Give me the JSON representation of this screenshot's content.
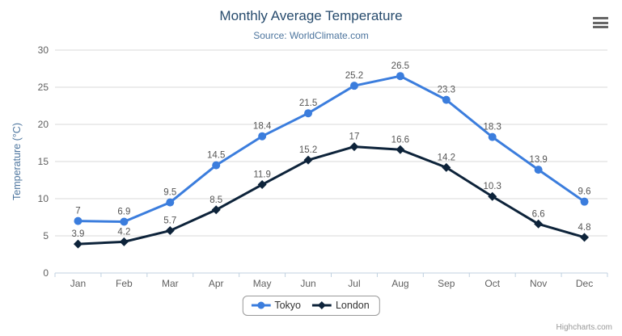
{
  "header": {
    "title": "Monthly Average Temperature",
    "subtitle": "Source: WorldClimate.com"
  },
  "credits": "Highcharts.com",
  "menu_icon": "hamburger-menu",
  "chart_data": {
    "type": "line",
    "title": "Monthly Average Temperature",
    "subtitle": "Source: WorldClimate.com",
    "categories": [
      "Jan",
      "Feb",
      "Mar",
      "Apr",
      "May",
      "Jun",
      "Jul",
      "Aug",
      "Sep",
      "Oct",
      "Nov",
      "Dec"
    ],
    "series": [
      {
        "name": "Tokyo",
        "color": "#3b7ddd",
        "marker": "circle",
        "values": [
          7,
          6.9,
          9.5,
          14.5,
          18.4,
          21.5,
          25.2,
          26.5,
          23.3,
          18.3,
          13.9,
          9.6
        ]
      },
      {
        "name": "London",
        "color": "#0d233a",
        "marker": "diamond",
        "values": [
          3.9,
          4.2,
          5.7,
          8.5,
          11.9,
          15.2,
          17,
          16.6,
          14.2,
          10.3,
          6.6,
          4.8
        ]
      }
    ],
    "xlabel": "",
    "ylabel": "Temperature (°C)",
    "ylim": [
      0,
      30
    ],
    "yticks": [
      0,
      5,
      10,
      15,
      20,
      25,
      30
    ],
    "grid": true,
    "data_labels": true,
    "legend_position": "bottom",
    "style": {
      "grid_color": "#d8d8d8",
      "axis_line_color": "#c0d0e0",
      "axis_label_color": "#606060",
      "axis_title_color": "#4d759e",
      "data_label_color": "#555555"
    }
  }
}
